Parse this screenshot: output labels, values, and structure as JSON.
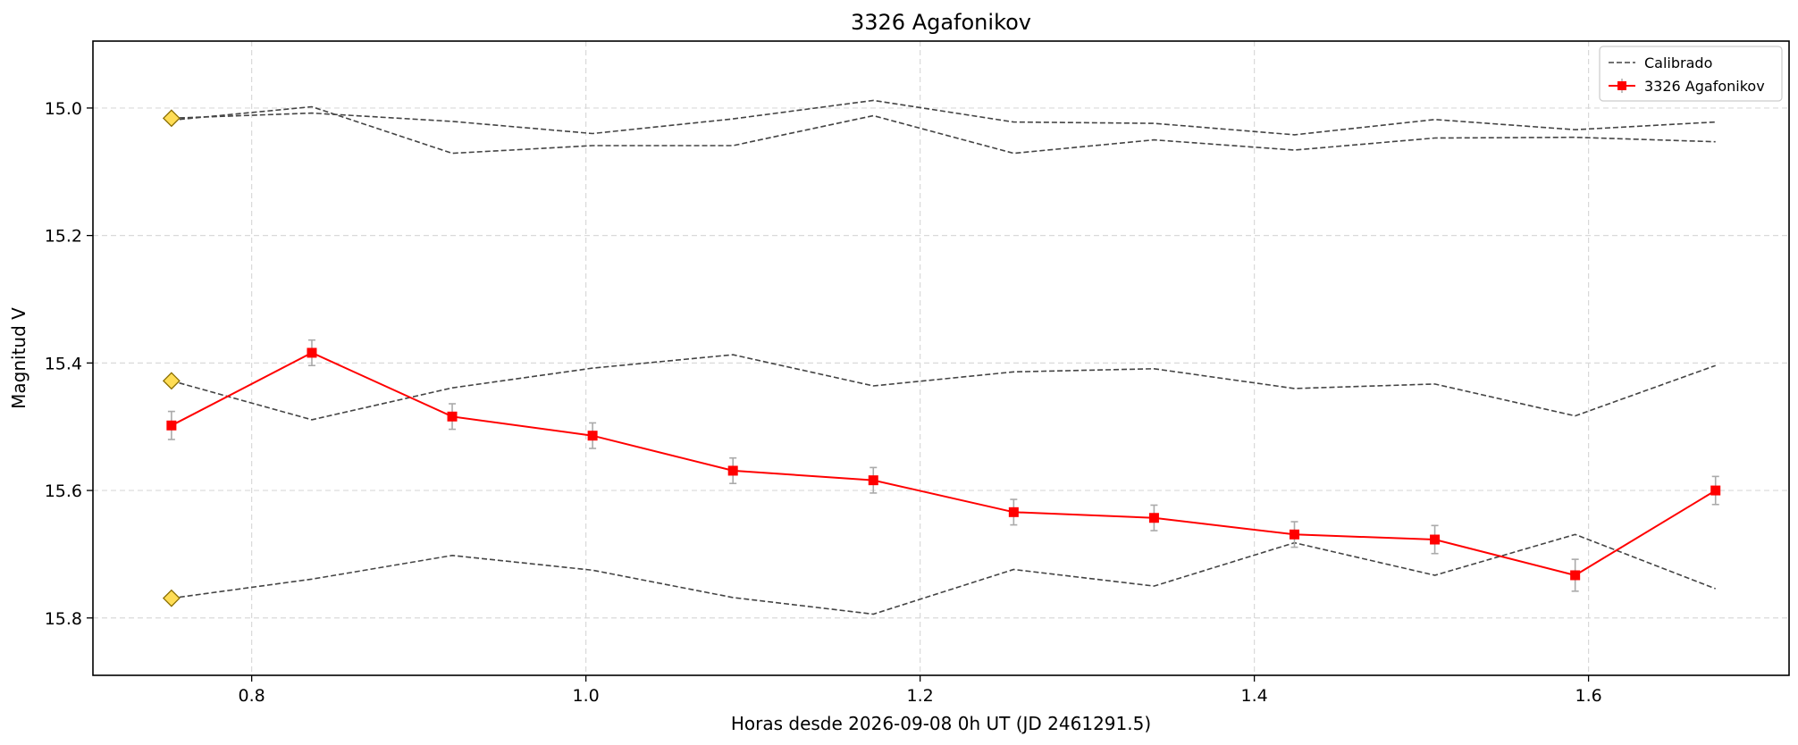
{
  "chart_data": {
    "type": "line",
    "title": "3326 Agafonikov",
    "xlabel": "Horas desde 2026-09-08 0h UT (JD 2461291.5)",
    "ylabel": "Magnitud V",
    "xlim": [
      0.705,
      1.72
    ],
    "ylim": [
      15.89,
      14.895
    ],
    "y_inverted": true,
    "grid": true,
    "legend_position": "top-right",
    "x_ticks": [
      0.8,
      1.0,
      1.2,
      1.4,
      1.6
    ],
    "x_tick_labels": [
      "0.8",
      "1.0",
      "1.2",
      "1.4",
      "1.6"
    ],
    "y_ticks": [
      15.0,
      15.2,
      15.4,
      15.6,
      15.8
    ],
    "y_tick_labels": [
      "15.0",
      "15.2",
      "15.4",
      "15.6",
      "15.8"
    ],
    "x": [
      0.752,
      0.836,
      0.92,
      1.004,
      1.088,
      1.172,
      1.256,
      1.34,
      1.424,
      1.508,
      1.592,
      1.676
    ],
    "legend": [
      {
        "label": "Calibrado",
        "style": "dashed",
        "color": "#444444"
      },
      {
        "label": "3326 Agafonikov",
        "style": "solid-square-errorbar",
        "color": "#ff0000"
      }
    ],
    "series": [
      {
        "name": "Calibrado",
        "style": "dashed",
        "color": "#444444",
        "values": [
          15.016,
          15.008,
          15.021,
          15.04,
          15.017,
          14.988,
          15.022,
          15.024,
          15.042,
          15.018,
          15.034,
          15.022
        ]
      },
      {
        "style": "dashed",
        "color": "#444444",
        "values": [
          15.019,
          14.998,
          15.071,
          15.059,
          15.059,
          15.012,
          15.071,
          15.05,
          15.066,
          15.047,
          15.046,
          15.053
        ]
      },
      {
        "style": "dashed",
        "color": "#444444",
        "values": [
          15.428,
          15.489,
          15.439,
          15.408,
          15.387,
          15.436,
          15.414,
          15.409,
          15.44,
          15.433,
          15.483,
          15.404
        ]
      },
      {
        "style": "dashed",
        "color": "#444444",
        "values": [
          15.769,
          15.739,
          15.702,
          15.725,
          15.768,
          15.794,
          15.724,
          15.75,
          15.682,
          15.733,
          15.669,
          15.754
        ]
      },
      {
        "name": "3326 Agafonikov",
        "style": "solid-square-errorbar",
        "color": "#ff0000",
        "values": [
          15.498,
          15.384,
          15.484,
          15.514,
          15.569,
          15.584,
          15.634,
          15.643,
          15.669,
          15.677,
          15.733,
          15.6
        ],
        "errors": [
          0.022,
          0.02,
          0.02,
          0.02,
          0.02,
          0.02,
          0.02,
          0.02,
          0.02,
          0.022,
          0.025,
          0.022
        ]
      }
    ],
    "comparison_stars": {
      "color": "#ffdd55",
      "x": [
        0.752,
        0.752,
        0.752
      ],
      "values": [
        15.016,
        15.428,
        15.769
      ]
    }
  }
}
